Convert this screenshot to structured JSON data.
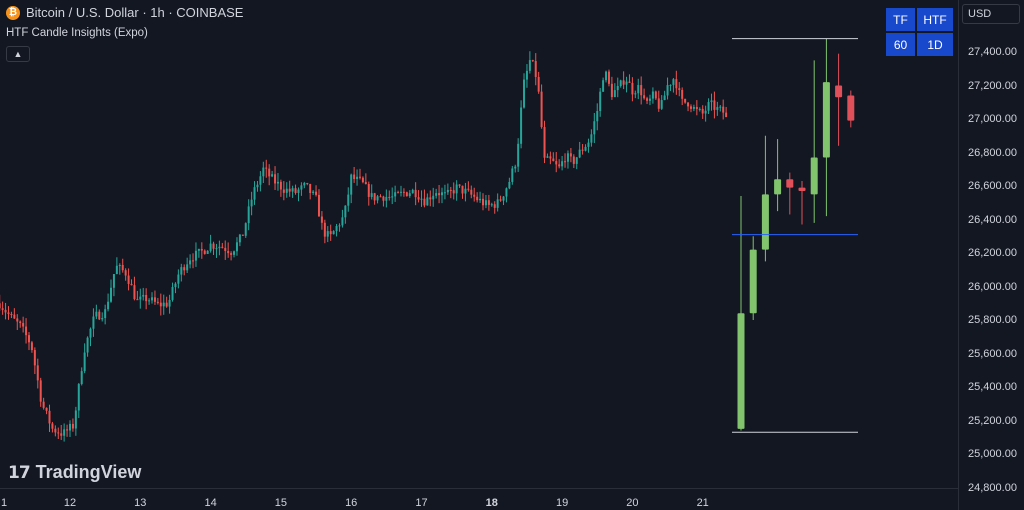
{
  "header": {
    "symbol_title": "Bitcoin / U.S. Dollar · 1h · COINBASE",
    "icon": "bitcoin-icon",
    "indicator_name": "HTF Candle Insights (Expo)",
    "collapse_icon": "chevron-up-icon"
  },
  "htf_table": {
    "col1_header": "TF",
    "col2_header": "HTF",
    "col1_value": "60",
    "col2_value": "1D"
  },
  "price_scale": {
    "currency": "USD",
    "labels": [
      "27,400.00",
      "27,200.00",
      "27,000.00",
      "26,800.00",
      "26,600.00",
      "26,400.00",
      "26,200.00",
      "26,000.00",
      "25,800.00",
      "25,600.00",
      "25,400.00",
      "25,200.00",
      "25,000.00",
      "24,800.00"
    ]
  },
  "time_axis": {
    "labels": [
      {
        "text": "1",
        "bold": false
      },
      {
        "text": "12",
        "bold": false
      },
      {
        "text": "13",
        "bold": false
      },
      {
        "text": "14",
        "bold": false
      },
      {
        "text": "15",
        "bold": false
      },
      {
        "text": "16",
        "bold": false
      },
      {
        "text": "17",
        "bold": false
      },
      {
        "text": "18",
        "bold": true
      },
      {
        "text": "19",
        "bold": false
      },
      {
        "text": "20",
        "bold": false
      },
      {
        "text": "21",
        "bold": false
      }
    ]
  },
  "branding": {
    "logo_mark": "17",
    "logo_text": "TradingView"
  },
  "colors": {
    "background": "#131722",
    "up_hourly": "#26a69a",
    "down_hourly": "#ef5350",
    "up_htf": "#82c46e",
    "down_htf": "#e0505a",
    "midline": "#2962ff",
    "range_line": "#d1d4dc",
    "table_bg": "#1848cc"
  },
  "chart_data": {
    "type": "candlestick",
    "hourly_path": [
      [
        11,
        25900
      ],
      [
        11.15,
        25820
      ],
      [
        11.3,
        25760
      ],
      [
        11.45,
        25650
      ],
      [
        11.6,
        25300
      ],
      [
        11.75,
        25150
      ],
      [
        11.9,
        25120
      ],
      [
        12.05,
        25170
      ],
      [
        12.2,
        25620
      ],
      [
        12.35,
        25820
      ],
      [
        12.5,
        25850
      ],
      [
        12.65,
        26120
      ],
      [
        12.8,
        26080
      ],
      [
        12.95,
        25910
      ],
      [
        13.1,
        25930
      ],
      [
        13.25,
        25890
      ],
      [
        13.4,
        25900
      ],
      [
        13.55,
        26080
      ],
      [
        13.7,
        26170
      ],
      [
        13.85,
        26200
      ],
      [
        14.0,
        26250
      ],
      [
        14.15,
        26240
      ],
      [
        14.3,
        26210
      ],
      [
        14.45,
        26300
      ],
      [
        14.6,
        26550
      ],
      [
        14.75,
        26700
      ],
      [
        14.9,
        26630
      ],
      [
        15.05,
        26580
      ],
      [
        15.2,
        26560
      ],
      [
        15.35,
        26600
      ],
      [
        15.5,
        26520
      ],
      [
        15.6,
        26330
      ],
      [
        15.7,
        26290
      ],
      [
        15.8,
        26360
      ],
      [
        15.9,
        26420
      ],
      [
        16.0,
        26650
      ],
      [
        16.15,
        26620
      ],
      [
        16.3,
        26530
      ],
      [
        16.45,
        26540
      ],
      [
        16.6,
        26530
      ],
      [
        16.75,
        26560
      ],
      [
        16.9,
        26570
      ],
      [
        17.05,
        26510
      ],
      [
        17.2,
        26570
      ],
      [
        17.35,
        26540
      ],
      [
        17.5,
        26590
      ],
      [
        17.65,
        26560
      ],
      [
        17.8,
        26520
      ],
      [
        17.95,
        26480
      ],
      [
        18.1,
        26500
      ],
      [
        18.25,
        26630
      ],
      [
        18.35,
        26760
      ],
      [
        18.45,
        27200
      ],
      [
        18.55,
        27360
      ],
      [
        18.65,
        27230
      ],
      [
        18.75,
        26750
      ],
      [
        18.85,
        26750
      ],
      [
        18.95,
        26700
      ],
      [
        19.05,
        26780
      ],
      [
        19.15,
        26740
      ],
      [
        19.25,
        26800
      ],
      [
        19.4,
        26880
      ],
      [
        19.5,
        27050
      ],
      [
        19.6,
        27300
      ],
      [
        19.7,
        27150
      ],
      [
        19.8,
        27180
      ],
      [
        19.9,
        27250
      ],
      [
        20.0,
        27170
      ],
      [
        20.1,
        27190
      ],
      [
        20.2,
        27080
      ],
      [
        20.3,
        27140
      ],
      [
        20.4,
        27060
      ],
      [
        20.5,
        27200
      ],
      [
        20.6,
        27250
      ],
      [
        20.7,
        27100
      ],
      [
        20.8,
        27100
      ],
      [
        20.9,
        27050
      ],
      [
        21.0,
        27030
      ],
      [
        21.1,
        27090
      ],
      [
        21.2,
        27060
      ],
      [
        21.3,
        27040
      ],
      [
        21.35,
        26980
      ]
    ],
    "htf_candles": [
      {
        "o": 25150,
        "h": 26540,
        "l": 25140,
        "c": 25840
      },
      {
        "o": 25840,
        "h": 26300,
        "l": 25800,
        "c": 26220
      },
      {
        "o": 26220,
        "h": 26900,
        "l": 26150,
        "c": 26550
      },
      {
        "o": 26550,
        "h": 26880,
        "l": 26450,
        "c": 26640
      },
      {
        "o": 26640,
        "h": 26680,
        "l": 26430,
        "c": 26590
      },
      {
        "o": 26590,
        "h": 26630,
        "l": 26370,
        "c": 26570
      },
      {
        "o": 26550,
        "h": 27350,
        "l": 26380,
        "c": 26770
      },
      {
        "o": 26770,
        "h": 27480,
        "l": 26420,
        "c": 27220
      },
      {
        "o": 27200,
        "h": 27390,
        "l": 26840,
        "c": 27130
      },
      {
        "o": 27140,
        "h": 27170,
        "l": 26950,
        "c": 26990
      }
    ],
    "range_high": 27480,
    "range_low": 25130,
    "midline": 26310,
    "y_range": [
      24800,
      27500
    ]
  }
}
